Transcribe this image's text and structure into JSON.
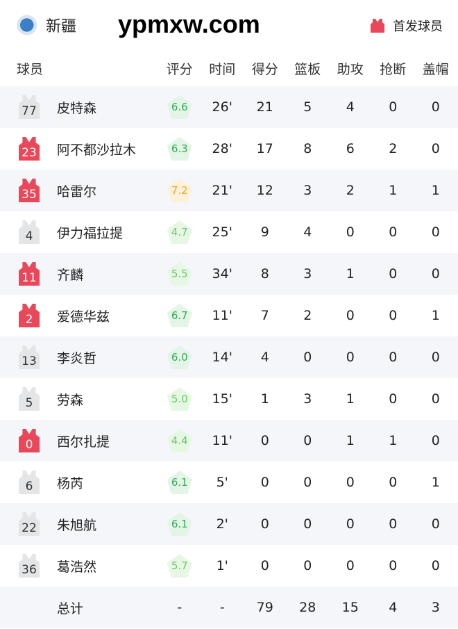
{
  "header": {
    "team": "新疆",
    "legend_label": "首发球员",
    "logo_icon": "xinjiang-team-logo"
  },
  "columns": [
    "球员",
    "评分",
    "时间",
    "得分",
    "篮板",
    "助攻",
    "抢断",
    "盖帽"
  ],
  "colors": {
    "starter": "#e8485a",
    "bench": "#e4e5e7",
    "rating_high": "#f5a623",
    "rating_mid": "#3aa757",
    "rating_low": "#6bc46b"
  },
  "players": [
    {
      "num": "77",
      "name": "皮特森",
      "starter": false,
      "rating": "6.6",
      "time": "26'",
      "pts": "21",
      "reb": "5",
      "ast": "4",
      "stl": "0",
      "blk": "0"
    },
    {
      "num": "23",
      "name": "阿不都沙拉木",
      "starter": true,
      "rating": "6.3",
      "time": "28'",
      "pts": "17",
      "reb": "8",
      "ast": "6",
      "stl": "2",
      "blk": "0"
    },
    {
      "num": "35",
      "name": "哈雷尔",
      "starter": true,
      "rating": "7.2",
      "time": "21'",
      "pts": "12",
      "reb": "3",
      "ast": "2",
      "stl": "1",
      "blk": "1"
    },
    {
      "num": "4",
      "name": "伊力福拉提",
      "starter": false,
      "rating": "4.7",
      "time": "25'",
      "pts": "9",
      "reb": "4",
      "ast": "0",
      "stl": "0",
      "blk": "0"
    },
    {
      "num": "11",
      "name": "齐麟",
      "starter": true,
      "rating": "5.5",
      "time": "34'",
      "pts": "8",
      "reb": "3",
      "ast": "1",
      "stl": "0",
      "blk": "0"
    },
    {
      "num": "2",
      "name": "爱德华兹",
      "starter": true,
      "rating": "6.7",
      "time": "11'",
      "pts": "7",
      "reb": "2",
      "ast": "0",
      "stl": "0",
      "blk": "1"
    },
    {
      "num": "13",
      "name": "李炎哲",
      "starter": false,
      "rating": "6.0",
      "time": "14'",
      "pts": "4",
      "reb": "0",
      "ast": "0",
      "stl": "0",
      "blk": "0"
    },
    {
      "num": "5",
      "name": "劳森",
      "starter": false,
      "rating": "5.0",
      "time": "15'",
      "pts": "1",
      "reb": "3",
      "ast": "1",
      "stl": "0",
      "blk": "0"
    },
    {
      "num": "0",
      "name": "西尔扎提",
      "starter": true,
      "rating": "4.4",
      "time": "11'",
      "pts": "0",
      "reb": "0",
      "ast": "1",
      "stl": "1",
      "blk": "0"
    },
    {
      "num": "6",
      "name": "杨芮",
      "starter": false,
      "rating": "6.1",
      "time": "5'",
      "pts": "0",
      "reb": "0",
      "ast": "0",
      "stl": "0",
      "blk": "1"
    },
    {
      "num": "22",
      "name": "朱旭航",
      "starter": false,
      "rating": "6.1",
      "time": "2'",
      "pts": "0",
      "reb": "0",
      "ast": "0",
      "stl": "0",
      "blk": "0"
    },
    {
      "num": "36",
      "name": "葛浩然",
      "starter": false,
      "rating": "5.7",
      "time": "1'",
      "pts": "0",
      "reb": "0",
      "ast": "0",
      "stl": "0",
      "blk": "0"
    }
  ],
  "total": {
    "label": "总计",
    "rating": "-",
    "time": "-",
    "pts": "79",
    "reb": "28",
    "ast": "15",
    "stl": "4",
    "blk": "3"
  },
  "watermark": "ypmxw.com"
}
